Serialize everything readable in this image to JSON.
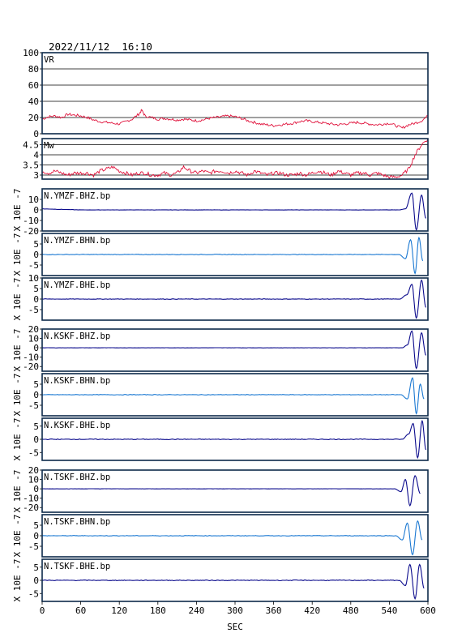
{
  "header": {
    "datetime": "2022/11/12  16:10"
  },
  "xaxis": {
    "label": "SEC",
    "ticks": [
      0,
      60,
      120,
      180,
      240,
      300,
      360,
      420,
      480,
      540,
      600
    ],
    "range": [
      0,
      600
    ]
  },
  "colors": {
    "vr": "#e0103a",
    "mw": "#e0103a",
    "vertical": "#0a0a8c",
    "horizontal_n": "#1a78d2",
    "horizontal_e": "#0a0a8c",
    "frame": "#0d2a4a"
  },
  "chart_data": [
    {
      "type": "line",
      "panel": "vr",
      "label": "VR",
      "ylim": [
        0,
        100
      ],
      "yticks": [
        0,
        20,
        40,
        60,
        80,
        100
      ],
      "grid": true,
      "x": [
        0,
        10,
        20,
        30,
        40,
        50,
        60,
        70,
        80,
        90,
        100,
        110,
        120,
        130,
        140,
        150,
        155,
        160,
        170,
        180,
        190,
        200,
        210,
        220,
        230,
        240,
        250,
        260,
        270,
        280,
        290,
        300,
        310,
        320,
        330,
        340,
        350,
        360,
        370,
        380,
        390,
        400,
        410,
        420,
        430,
        440,
        450,
        460,
        470,
        480,
        490,
        500,
        510,
        520,
        530,
        540,
        550,
        560,
        570,
        580,
        590,
        600
      ],
      "values": [
        18,
        21,
        22,
        20,
        24,
        23,
        22,
        20,
        17,
        15,
        14,
        13,
        12,
        15,
        18,
        24,
        29,
        22,
        20,
        18,
        19,
        18,
        17,
        18,
        17,
        16,
        17,
        19,
        20,
        21,
        22,
        21,
        19,
        16,
        14,
        12,
        11,
        10,
        11,
        12,
        13,
        15,
        16,
        15,
        14,
        13,
        12,
        11,
        12,
        13,
        14,
        13,
        12,
        11,
        12,
        13,
        10,
        7,
        11,
        13,
        16,
        22
      ]
    },
    {
      "type": "line",
      "panel": "mw",
      "label": "Mw",
      "ylim": [
        2.8,
        4.8
      ],
      "yticks": [
        3.0,
        3.5,
        4.0,
        4.5
      ],
      "grid": true,
      "x": [
        0,
        10,
        20,
        30,
        40,
        50,
        60,
        70,
        80,
        90,
        100,
        110,
        120,
        130,
        140,
        150,
        160,
        170,
        180,
        190,
        200,
        210,
        220,
        230,
        240,
        250,
        260,
        270,
        280,
        290,
        300,
        310,
        320,
        330,
        340,
        350,
        360,
        370,
        380,
        390,
        400,
        410,
        420,
        430,
        440,
        450,
        460,
        470,
        480,
        490,
        500,
        510,
        520,
        530,
        540,
        550,
        560,
        570,
        580,
        590,
        600
      ],
      "values": [
        3.2,
        3.1,
        3.2,
        3.1,
        3.0,
        3.1,
        3.1,
        3.1,
        3.0,
        3.2,
        3.3,
        3.4,
        3.2,
        3.1,
        3.0,
        3.1,
        3.1,
        3.0,
        3.0,
        3.1,
        3.0,
        3.1,
        3.4,
        3.2,
        3.1,
        3.2,
        3.1,
        3.2,
        3.2,
        3.1,
        3.2,
        3.1,
        3.0,
        3.2,
        3.1,
        3.0,
        3.1,
        3.1,
        3.0,
        3.0,
        3.1,
        3.0,
        3.1,
        3.2,
        3.1,
        3.0,
        3.2,
        3.1,
        3.0,
        3.1,
        3.1,
        3.0,
        3.1,
        3.0,
        2.9,
        2.9,
        3.0,
        3.3,
        4.0,
        4.5,
        4.8
      ]
    },
    {
      "type": "line",
      "panel": "trace",
      "label": "N.YMZF.BHZ.bp",
      "ylabel": "X 10E -7",
      "ylim": [
        -20,
        20
      ],
      "yticks": [
        -20,
        -10,
        0,
        10
      ],
      "color_key": "vertical",
      "baseline": 1,
      "wave": {
        "start": 555,
        "peaks": [
          [
            565,
            1
          ],
          [
            575,
            16
          ],
          [
            582,
            -19
          ],
          [
            590,
            14
          ],
          [
            597,
            -8
          ]
        ]
      }
    },
    {
      "type": "line",
      "panel": "trace",
      "label": "N.YMZF.BHN.bp",
      "ylabel": "X 10E -7",
      "ylim": [
        -10,
        10
      ],
      "yticks": [
        -5,
        0,
        5
      ],
      "color_key": "horizontal_n",
      "baseline": 0,
      "wave": {
        "start": 555,
        "peaks": [
          [
            565,
            -2
          ],
          [
            573,
            7
          ],
          [
            580,
            -9
          ],
          [
            586,
            8
          ],
          [
            592,
            -3
          ]
        ]
      }
    },
    {
      "type": "line",
      "panel": "trace",
      "label": "N.YMZF.BHE.bp",
      "ylabel": "X 10E -7",
      "ylim": [
        -10,
        10
      ],
      "yticks": [
        -5,
        0,
        5,
        10
      ],
      "color_key": "horizontal_e",
      "baseline": 0,
      "wave": {
        "start": 556,
        "peaks": [
          [
            567,
            2
          ],
          [
            575,
            7
          ],
          [
            582,
            -9
          ],
          [
            590,
            9
          ],
          [
            597,
            -4
          ]
        ]
      }
    },
    {
      "type": "line",
      "panel": "trace",
      "label": "N.KSKF.BHZ.bp",
      "ylabel": "X 10E -7",
      "ylim": [
        -25,
        20
      ],
      "yticks": [
        -20,
        -10,
        0,
        10,
        20
      ],
      "color_key": "vertical",
      "baseline": 0,
      "wave": {
        "start": 560,
        "peaks": [
          [
            568,
            3
          ],
          [
            575,
            18
          ],
          [
            582,
            -22
          ],
          [
            590,
            16
          ],
          [
            597,
            -8
          ]
        ]
      }
    },
    {
      "type": "line",
      "panel": "trace",
      "label": "N.KSKF.BHN.bp",
      "ylabel": "X 10E -7",
      "ylim": [
        -10,
        10
      ],
      "yticks": [
        -5,
        0,
        5
      ],
      "color_key": "horizontal_n",
      "baseline": 0,
      "wave": {
        "start": 558,
        "peaks": [
          [
            568,
            -2
          ],
          [
            576,
            8
          ],
          [
            582,
            -9
          ],
          [
            588,
            5
          ],
          [
            594,
            -2
          ]
        ]
      }
    },
    {
      "type": "line",
      "panel": "trace",
      "label": "N.KSKF.BHE.bp",
      "ylabel": "X 10E -7",
      "ylim": [
        -8,
        8
      ],
      "yticks": [
        -5,
        0,
        5
      ],
      "color_key": "horizontal_e",
      "baseline": 0,
      "wave": {
        "start": 560,
        "peaks": [
          [
            570,
            2
          ],
          [
            577,
            6
          ],
          [
            584,
            -7
          ],
          [
            591,
            7
          ],
          [
            597,
            -4
          ]
        ]
      }
    },
    {
      "type": "line",
      "panel": "trace",
      "label": "N.TSKF.BHZ.bp",
      "ylabel": "X 10E -7",
      "ylim": [
        -25,
        20
      ],
      "yticks": [
        -20,
        -10,
        0,
        10,
        20
      ],
      "color_key": "vertical",
      "baseline": 0,
      "wave": {
        "start": 548,
        "peaks": [
          [
            558,
            -3
          ],
          [
            565,
            10
          ],
          [
            572,
            -18
          ],
          [
            580,
            14
          ],
          [
            588,
            -5
          ]
        ]
      }
    },
    {
      "type": "line",
      "panel": "trace",
      "label": "N.TSKF.BHN.bp",
      "ylabel": "X 10E -7",
      "ylim": [
        -10,
        10
      ],
      "yticks": [
        -5,
        0,
        5
      ],
      "color_key": "horizontal_n",
      "baseline": 0,
      "wave": {
        "start": 550,
        "peaks": [
          [
            560,
            -2
          ],
          [
            568,
            6
          ],
          [
            576,
            -9
          ],
          [
            584,
            7
          ],
          [
            591,
            -2
          ]
        ]
      }
    },
    {
      "type": "line",
      "panel": "trace",
      "label": "N.TSKF.BHE.bp",
      "ylabel": "X 10E -7",
      "ylim": [
        -8,
        8
      ],
      "yticks": [
        -5,
        0,
        5
      ],
      "color_key": "horizontal_e",
      "baseline": 0,
      "wave": {
        "start": 555,
        "peaks": [
          [
            565,
            -2
          ],
          [
            572,
            6
          ],
          [
            580,
            -7
          ],
          [
            587,
            6
          ],
          [
            594,
            -3
          ]
        ]
      }
    }
  ]
}
